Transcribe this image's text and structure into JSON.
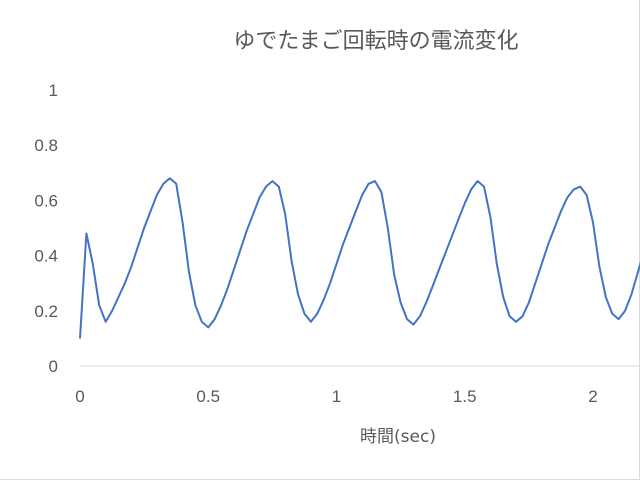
{
  "chart_data": {
    "type": "line",
    "title": "ゆでたまご回転時の電流変化",
    "xlabel": "時間(sec)",
    "ylabel": "",
    "xlim": [
      0,
      2.2
    ],
    "ylim": [
      0,
      1
    ],
    "x_ticks": [
      "0",
      "0.5",
      "1",
      "1.5",
      "2"
    ],
    "y_ticks": [
      "0",
      "0.2",
      "0.4",
      "0.6",
      "0.8",
      "1"
    ],
    "grid": false,
    "legend": "none",
    "series": [
      {
        "color": "#4472c4",
        "x": [
          0.0,
          0.025,
          0.05,
          0.075,
          0.1,
          0.125,
          0.15,
          0.175,
          0.2,
          0.225,
          0.25,
          0.275,
          0.3,
          0.325,
          0.35,
          0.375,
          0.4,
          0.425,
          0.45,
          0.475,
          0.5,
          0.525,
          0.55,
          0.575,
          0.6,
          0.625,
          0.65,
          0.675,
          0.7,
          0.725,
          0.75,
          0.775,
          0.8,
          0.825,
          0.85,
          0.875,
          0.9,
          0.925,
          0.95,
          0.975,
          1.0,
          1.025,
          1.05,
          1.075,
          1.1,
          1.125,
          1.15,
          1.175,
          1.2,
          1.225,
          1.25,
          1.275,
          1.3,
          1.325,
          1.35,
          1.375,
          1.4,
          1.425,
          1.45,
          1.475,
          1.5,
          1.525,
          1.55,
          1.575,
          1.6,
          1.625,
          1.65,
          1.675,
          1.7,
          1.725,
          1.75,
          1.775,
          1.8,
          1.825,
          1.85,
          1.875,
          1.9,
          1.925,
          1.95,
          1.975,
          2.0,
          2.025,
          2.05,
          2.075,
          2.1,
          2.125,
          2.15,
          2.175,
          2.2
        ],
        "values": [
          0.1,
          0.48,
          0.37,
          0.22,
          0.16,
          0.2,
          0.25,
          0.3,
          0.36,
          0.43,
          0.5,
          0.56,
          0.62,
          0.66,
          0.68,
          0.66,
          0.52,
          0.34,
          0.22,
          0.16,
          0.14,
          0.17,
          0.22,
          0.28,
          0.35,
          0.42,
          0.49,
          0.55,
          0.61,
          0.65,
          0.67,
          0.65,
          0.55,
          0.38,
          0.26,
          0.19,
          0.16,
          0.19,
          0.24,
          0.3,
          0.37,
          0.44,
          0.5,
          0.56,
          0.62,
          0.66,
          0.67,
          0.63,
          0.5,
          0.33,
          0.23,
          0.17,
          0.15,
          0.18,
          0.23,
          0.29,
          0.35,
          0.41,
          0.47,
          0.53,
          0.59,
          0.64,
          0.67,
          0.65,
          0.54,
          0.37,
          0.25,
          0.18,
          0.16,
          0.18,
          0.23,
          0.3,
          0.37,
          0.44,
          0.5,
          0.56,
          0.61,
          0.64,
          0.65,
          0.62,
          0.52,
          0.36,
          0.25,
          0.19,
          0.17,
          0.2,
          0.26,
          0.34,
          0.42
        ]
      }
    ]
  }
}
